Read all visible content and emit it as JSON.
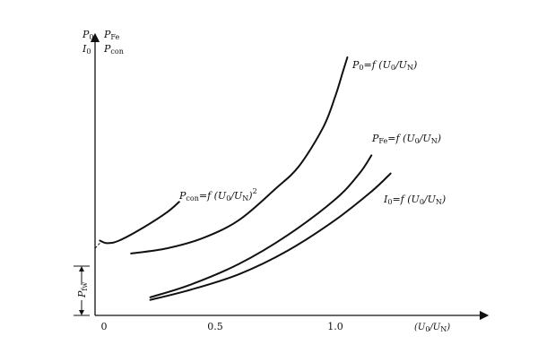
{
  "chart_data": {
    "type": "line",
    "title": "",
    "xlabel": "(U0/UN)",
    "ylabel": "",
    "y_axis_labels": [
      {
        "main": "P",
        "sub": "0"
      },
      {
        "main": "P",
        "sub": "Fe"
      },
      {
        "main": "I",
        "sub": "0"
      },
      {
        "main": "P",
        "sub": "con"
      }
    ],
    "x_ticks": [
      {
        "value": 0,
        "label": "0"
      },
      {
        "value": 0.5,
        "label": "0.5"
      },
      {
        "value": 1.0,
        "label": "1.0"
      }
    ],
    "xlim": [
      0,
      1.5
    ],
    "ylim": [
      0,
      1.0
    ],
    "series": [
      {
        "name": "P0=f(U0/UN)",
        "x": [
          0.15,
          0.3,
          0.45,
          0.6,
          0.75,
          0.85,
          0.95,
          1.0,
          1.03,
          1.05
        ],
        "y": [
          0.24,
          0.26,
          0.3,
          0.37,
          0.49,
          0.58,
          0.73,
          0.85,
          0.94,
          1.0
        ]
      },
      {
        "name": "PFe=f(U0/UN)",
        "x": [
          0.23,
          0.4,
          0.6,
          0.8,
          1.0,
          1.1,
          1.15
        ],
        "y": [
          0.07,
          0.12,
          0.2,
          0.31,
          0.45,
          0.55,
          0.62
        ]
      },
      {
        "name": "I0=f(U0/UN)",
        "x": [
          0.23,
          0.4,
          0.6,
          0.8,
          1.0,
          1.15,
          1.23
        ],
        "y": [
          0.06,
          0.1,
          0.16,
          0.25,
          0.37,
          0.48,
          0.55
        ]
      },
      {
        "name": "Pcon=f(U0/UN)²",
        "x": [
          0.02,
          0.05,
          0.1,
          0.2,
          0.3,
          0.35
        ],
        "y": [
          0.29,
          0.28,
          0.29,
          0.34,
          0.4,
          0.44
        ]
      }
    ],
    "dashed_extrapolation": {
      "x": [
        0.0,
        0.02
      ],
      "y": [
        0.26,
        0.28
      ]
    },
    "annotations": [
      {
        "name": "pfw",
        "main": "P",
        "sub": "fw"
      }
    ],
    "grid": false,
    "legend": "none"
  }
}
